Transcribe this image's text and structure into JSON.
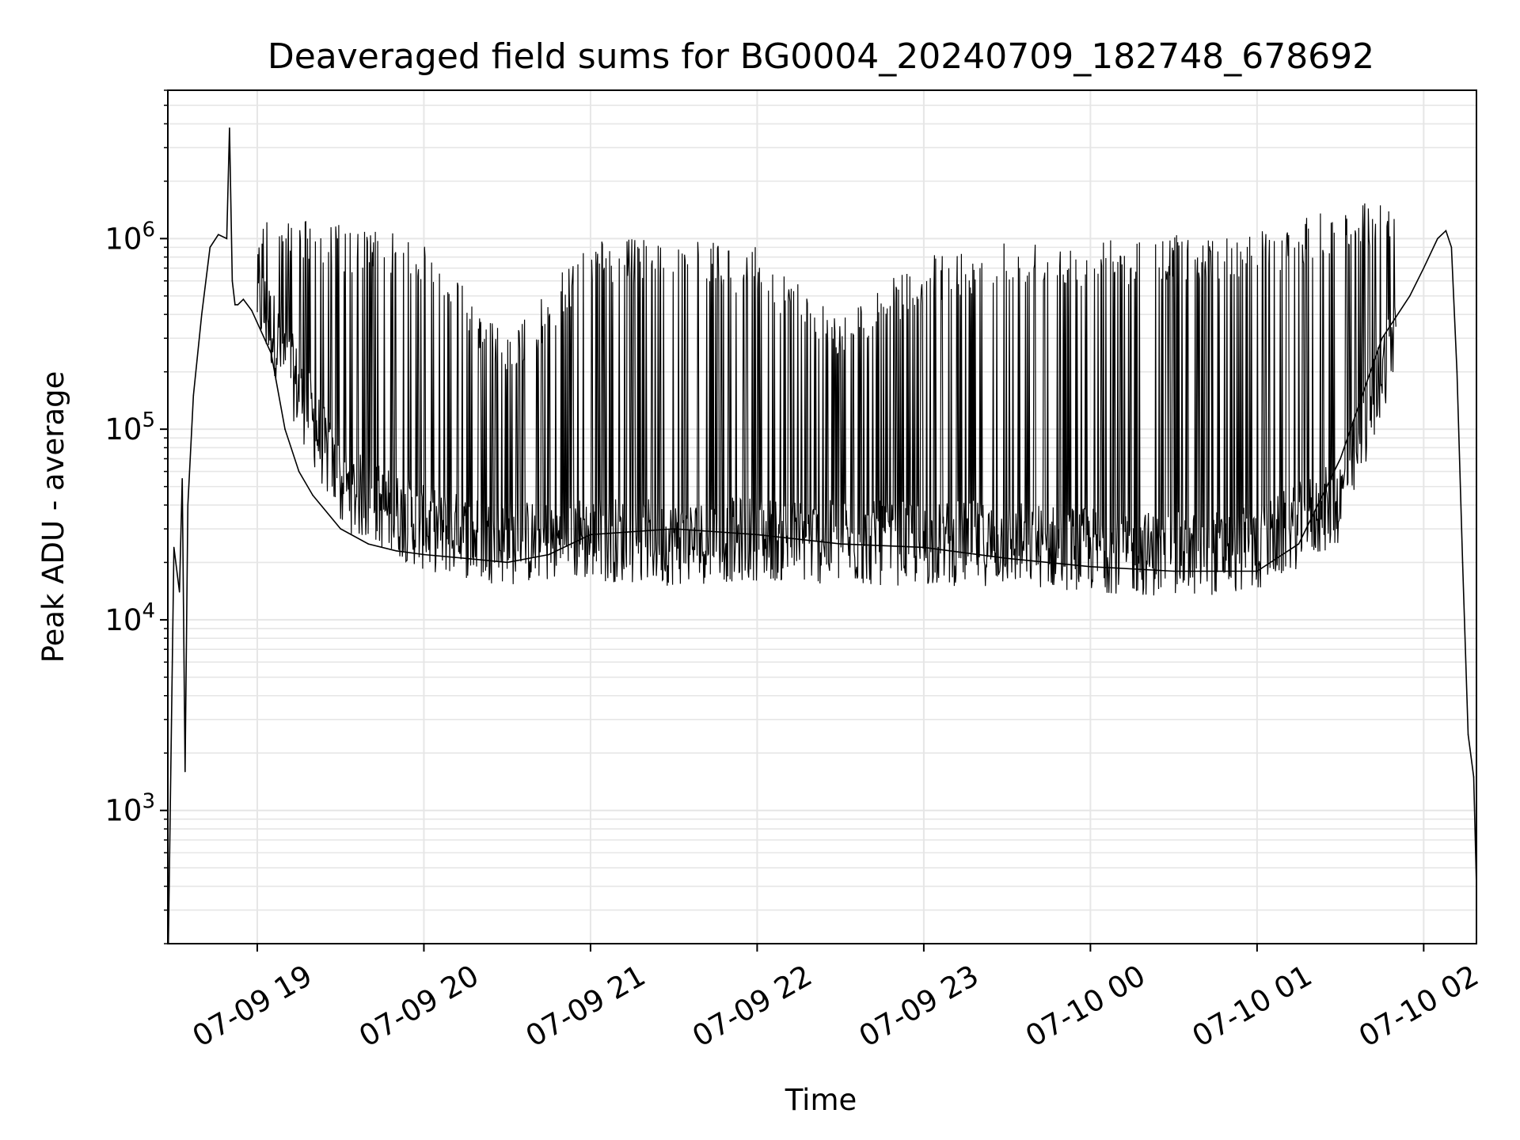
{
  "chart_data": {
    "type": "line",
    "title": "Deaveraged field sums for BG0004_20240709_182748_678692",
    "xlabel": "Time",
    "ylabel": "Peak ADU - average",
    "yscale": "log",
    "ylim": [
      200,
      6000000
    ],
    "xlim": [
      "2024-07-09 18:27:48",
      "2024-07-10 02:19:00"
    ],
    "grid": true,
    "line_color": "#000000",
    "grid_color": "#e6e6e6",
    "x_ticks": [
      {
        "t": "2024-07-09 19:00",
        "label": "07-09 19"
      },
      {
        "t": "2024-07-09 20:00",
        "label": "07-09 20"
      },
      {
        "t": "2024-07-09 21:00",
        "label": "07-09 21"
      },
      {
        "t": "2024-07-09 22:00",
        "label": "07-09 22"
      },
      {
        "t": "2024-07-09 23:00",
        "label": "07-09 23"
      },
      {
        "t": "2024-07-10 00:00",
        "label": "07-10 00"
      },
      {
        "t": "2024-07-10 01:00",
        "label": "07-10 01"
      },
      {
        "t": "2024-07-10 02:00",
        "label": "07-10 02"
      }
    ],
    "y_ticks": [
      {
        "value": 1000,
        "base": "10",
        "exp": "3"
      },
      {
        "value": 10000,
        "base": "10",
        "exp": "4"
      },
      {
        "value": 100000,
        "base": "10",
        "exp": "5"
      },
      {
        "value": 1000000,
        "base": "10",
        "exp": "6"
      }
    ],
    "series": [
      {
        "x": [
          "2024-07-09 18:28",
          "2024-07-09 18:30",
          "2024-07-09 18:32",
          "2024-07-09 18:33",
          "2024-07-09 18:34",
          "2024-07-09 18:35",
          "2024-07-09 18:37",
          "2024-07-09 18:40",
          "2024-07-09 18:43",
          "2024-07-09 18:46",
          "2024-07-09 18:49",
          "2024-07-09 18:50",
          "2024-07-09 18:51",
          "2024-07-09 18:52",
          "2024-07-09 18:53",
          "2024-07-09 18:55",
          "2024-07-09 18:58",
          "2024-07-09 19:05",
          "2024-07-09 19:10",
          "2024-07-09 19:15",
          "2024-07-09 19:20",
          "2024-07-09 19:30",
          "2024-07-09 19:40",
          "2024-07-09 19:50",
          "2024-07-09 20:00",
          "2024-07-09 20:15",
          "2024-07-09 20:30",
          "2024-07-09 20:45",
          "2024-07-09 21:00",
          "2024-07-09 21:30",
          "2024-07-09 22:00",
          "2024-07-09 22:30",
          "2024-07-09 23:00",
          "2024-07-09 23:30",
          "2024-07-10 00:00",
          "2024-07-10 00:30",
          "2024-07-10 01:00",
          "2024-07-10 01:15",
          "2024-07-10 01:30",
          "2024-07-10 01:45",
          "2024-07-10 01:55",
          "2024-07-10 02:00",
          "2024-07-10 02:05",
          "2024-07-10 02:08",
          "2024-07-10 02:10",
          "2024-07-10 02:12",
          "2024-07-10 02:14",
          "2024-07-10 02:16",
          "2024-07-10 02:18",
          "2024-07-10 02:19"
        ],
        "y": [
          200,
          24000,
          14000,
          55000,
          1600,
          40000,
          150000,
          400000,
          900000,
          1050000,
          1000000,
          3800000,
          600000,
          450000,
          450000,
          480000,
          420000,
          250000,
          100000,
          60000,
          45000,
          30000,
          25000,
          23000,
          22000,
          21000,
          20000,
          22000,
          28000,
          30000,
          28000,
          25000,
          24000,
          21000,
          19000,
          18000,
          18000,
          25000,
          70000,
          300000,
          500000,
          700000,
          1000000,
          1100000,
          900000,
          200000,
          20000,
          2500,
          1500,
          400
        ]
      }
    ],
    "noise_envelope": {
      "x": [
        "2024-07-09 19:00",
        "2024-07-09 19:30",
        "2024-07-09 20:00",
        "2024-07-09 20:30",
        "2024-07-09 21:00",
        "2024-07-09 21:30",
        "2024-07-09 22:00",
        "2024-07-09 22:30",
        "2024-07-09 23:00",
        "2024-07-09 23:30",
        "2024-07-10 00:00",
        "2024-07-10 00:30",
        "2024-07-10 01:00",
        "2024-07-10 01:30",
        "2024-07-10 01:50"
      ],
      "y_high": [
        1500000,
        1200000,
        1000000,
        300000,
        1000000,
        1000000,
        900000,
        400000,
        800000,
        1000000,
        1000000,
        1050000,
        1100000,
        1500000,
        1700000
      ],
      "y_low": [
        300000,
        30000,
        18000,
        15000,
        16000,
        15000,
        16000,
        15000,
        15000,
        15000,
        14000,
        13000,
        14000,
        25000,
        200000
      ]
    }
  }
}
